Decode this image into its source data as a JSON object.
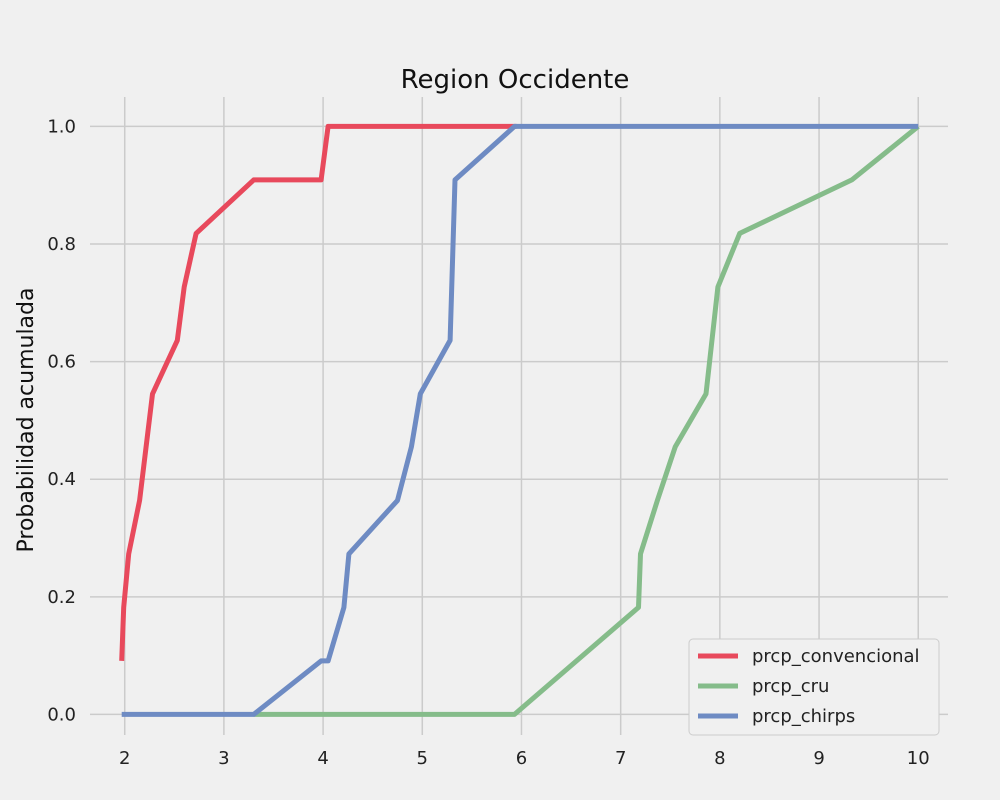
{
  "chart_data": {
    "type": "line",
    "title": "Region Occidente",
    "xlabel": "",
    "ylabel": "Probabilidad acumulada",
    "xlim": [
      1.65,
      10.3
    ],
    "ylim": [
      -0.035,
      1.05
    ],
    "xticks": [
      2,
      3,
      4,
      5,
      6,
      7,
      8,
      9,
      10
    ],
    "yticks": [
      0.0,
      0.2,
      0.4,
      0.6,
      0.8,
      1.0
    ],
    "ytick_labels": [
      "0.0",
      "0.2",
      "0.4",
      "0.6",
      "0.8",
      "1.0"
    ],
    "grid": true,
    "legend_position": "lower-right",
    "series": [
      {
        "name": "prcp_convencional",
        "color": "#e8495c",
        "x": [
          1.97,
          1.99,
          2.04,
          2.15,
          2.28,
          2.53,
          2.6,
          2.72,
          3.3,
          3.98,
          4.05,
          5.95
        ],
        "y": [
          0.091,
          0.182,
          0.273,
          0.364,
          0.545,
          0.636,
          0.727,
          0.818,
          0.909,
          0.909,
          1.0,
          1.0
        ]
      },
      {
        "name": "prcp_cru",
        "color": "#85bc8a",
        "x": [
          3.3,
          5.93,
          7.18,
          7.2,
          7.37,
          7.55,
          7.86,
          7.98,
          8.2,
          9.33,
          10.0
        ],
        "y": [
          0.0,
          0.0,
          0.182,
          0.273,
          0.364,
          0.455,
          0.545,
          0.727,
          0.818,
          0.909,
          1.0
        ]
      },
      {
        "name": "prcp_chirps",
        "color": "#6e8bc3",
        "x": [
          1.97,
          3.3,
          3.98,
          4.05,
          4.21,
          4.26,
          4.75,
          4.89,
          4.98,
          5.28,
          5.33,
          5.93,
          10.0
        ],
        "y": [
          0.0,
          0.0,
          0.091,
          0.091,
          0.182,
          0.273,
          0.364,
          0.455,
          0.545,
          0.636,
          0.909,
          1.0,
          1.0
        ]
      }
    ]
  }
}
